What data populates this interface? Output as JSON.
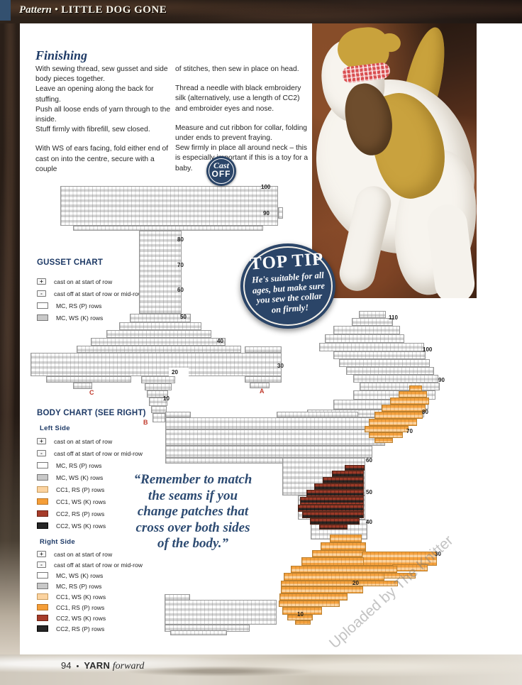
{
  "header": {
    "section": "Pattern",
    "separator": "•",
    "title": "LITTLE DOG GONE"
  },
  "finishing": {
    "heading": "Finishing",
    "col1": [
      "With sewing thread, sew gusset and side body pieces together.",
      "Leave an opening along the back for stuffing.",
      "Push all loose ends of yarn through to the inside.",
      "Stuff firmly with fibrefill, sew closed.",
      "With WS of ears facing, fold either end of cast on into the centre, secure with a couple"
    ],
    "col2": [
      "of stitches, then sew in place on head.",
      "Thread a needle with black embroidery silk (alternatively, use a length of CC2) and embroider eyes and nose.",
      "Measure and cut ribbon for collar, folding under ends to prevent fraying.",
      "Sew firmly in place all around neck – this is especially important if this is a toy for a baby."
    ]
  },
  "cast_off_badge": {
    "line1": "Cast",
    "line2": "OFF"
  },
  "top_tip": {
    "title": "TOP TIP",
    "body": "He's suitable for all\nages, but make sure\nyou sew the collar\non firmly!"
  },
  "gusset_chart": {
    "heading": "GUSSET CHART",
    "legend": [
      {
        "symbol": "+",
        "label": "cast on at start of row"
      },
      {
        "symbol": "-",
        "label": "cast off at start of row or mid-row"
      },
      {
        "swatch": "mc_rs",
        "label": "MC, RS (P) rows"
      },
      {
        "swatch": "mc_ws",
        "label": "MC, WS (K) rows"
      }
    ],
    "row_labels": [
      "100",
      "90",
      "80",
      "70",
      "60",
      "50",
      "40",
      "30",
      "20",
      "10"
    ],
    "markers": [
      "C",
      "A",
      "B"
    ]
  },
  "body_chart": {
    "heading": "BODY CHART (SEE RIGHT)",
    "row_labels": [
      "110",
      "100",
      "90",
      "80",
      "70",
      "60",
      "50",
      "40",
      "30",
      "20",
      "10"
    ],
    "left_side": {
      "title": "Left Side",
      "legend": [
        {
          "symbol": "+",
          "label": "cast on at start of row"
        },
        {
          "symbol": "-",
          "label": "cast off at start of row or mid-row"
        },
        {
          "swatch": "mc_rs",
          "label": "MC, RS (P) rows"
        },
        {
          "swatch": "mc_ws",
          "label": "MC, WS (K) rows"
        },
        {
          "swatch": "cc1_rs",
          "label": "CC1, RS (P) rows"
        },
        {
          "swatch": "cc1_ws",
          "label": "CC1, WS (K) rows"
        },
        {
          "swatch": "cc2_rs",
          "label": "CC2, RS (P) rows"
        },
        {
          "swatch": "cc2_ws",
          "label": "CC2, WS (K) rows"
        }
      ]
    },
    "right_side": {
      "title": "Right Side",
      "legend": [
        {
          "symbol": "+",
          "label": "cast on at start of row"
        },
        {
          "symbol": "-",
          "label": "cast off at start of row or mid-row"
        },
        {
          "swatch": "mc_ws",
          "label": "MC, WS (K) rows"
        },
        {
          "swatch": "mc_rs",
          "label": "MC, RS (P) rows"
        },
        {
          "swatch": "cc1_ws",
          "label": "CC1, WS (K) rows"
        },
        {
          "swatch": "cc1_rs",
          "label": "CC1, RS (P) rows"
        },
        {
          "swatch": "cc2_ws",
          "label": "CC2, WS (K) rows"
        },
        {
          "swatch": "cc2_rs",
          "label": "CC2, RS (P) rows"
        }
      ]
    }
  },
  "quote": "“Remember to match\nthe seams if you\nchange patches that\ncross over both sides\nof the body.”",
  "watermark": "Uploaded by The Knitter",
  "footer": {
    "page_number": "94",
    "separator": "•",
    "magazine_name": "YARN",
    "magazine_suffix": "forward"
  },
  "colors": {
    "navy": "#2b4568",
    "heading_navy": "#1e3a66",
    "stripe_grey": "#d3d3d3",
    "cc1_rs": "#fbd3a0",
    "cc1_ws": "#f59e38",
    "cc2_rs": "#a63c2a",
    "cc2_ws": "#262626",
    "marker_red": "#c0392b"
  }
}
